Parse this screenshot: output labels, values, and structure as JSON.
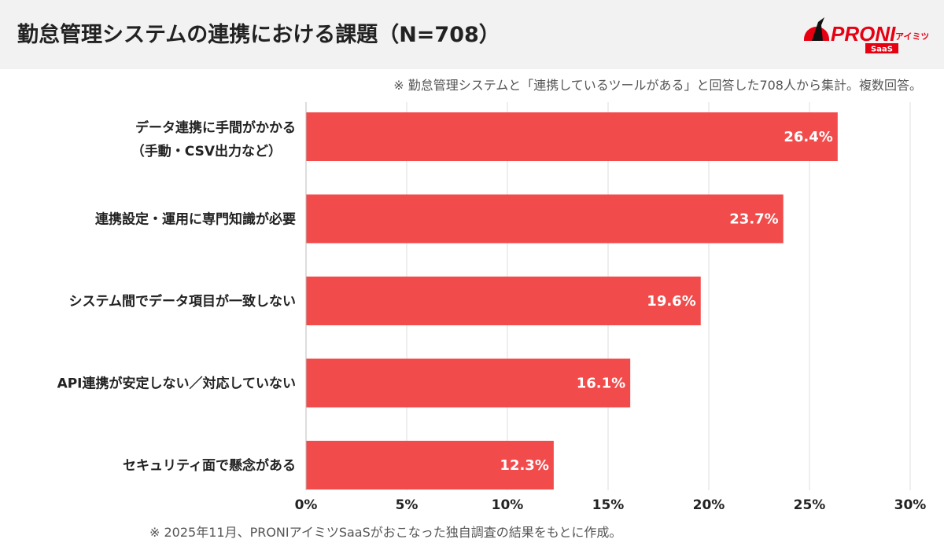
{
  "header": {
    "title": "勤怠管理システムの連携における課題（N=708）"
  },
  "logo": {
    "text": "PRONI",
    "sub": "アイミツ",
    "badge": "SaaS",
    "color": "#e60012"
  },
  "note": "※ 勤怠管理システムと「連携しているツールがある」と回答した708人から集計。複数回答。",
  "footer": "※ 2025年11月、PRONIアイミツSaaSがおこなった独自調査の結果をもとに作成。",
  "chart_data": {
    "type": "bar",
    "orientation": "horizontal",
    "categories": [
      [
        "データ連携に手間がかかる",
        "（手動・CSV出力など）"
      ],
      [
        "連携設定・運用に専門知識が必要"
      ],
      [
        "システム間でデータ項目が一致しない"
      ],
      [
        "API連携が安定しない／対応していない"
      ],
      [
        "セキュリティ面で懸念がある"
      ]
    ],
    "values": [
      26.4,
      23.7,
      19.6,
      16.1,
      12.3
    ],
    "data_labels": [
      "26.4%",
      "23.7%",
      "19.6%",
      "16.1%",
      "12.3%"
    ],
    "xlim": [
      0,
      30
    ],
    "ticks": [
      "0%",
      "5%",
      "10%",
      "15%",
      "20%",
      "25%",
      "30%"
    ],
    "grid": true,
    "bar_color": "#f24b4b",
    "grid_color": "#dddddd"
  }
}
